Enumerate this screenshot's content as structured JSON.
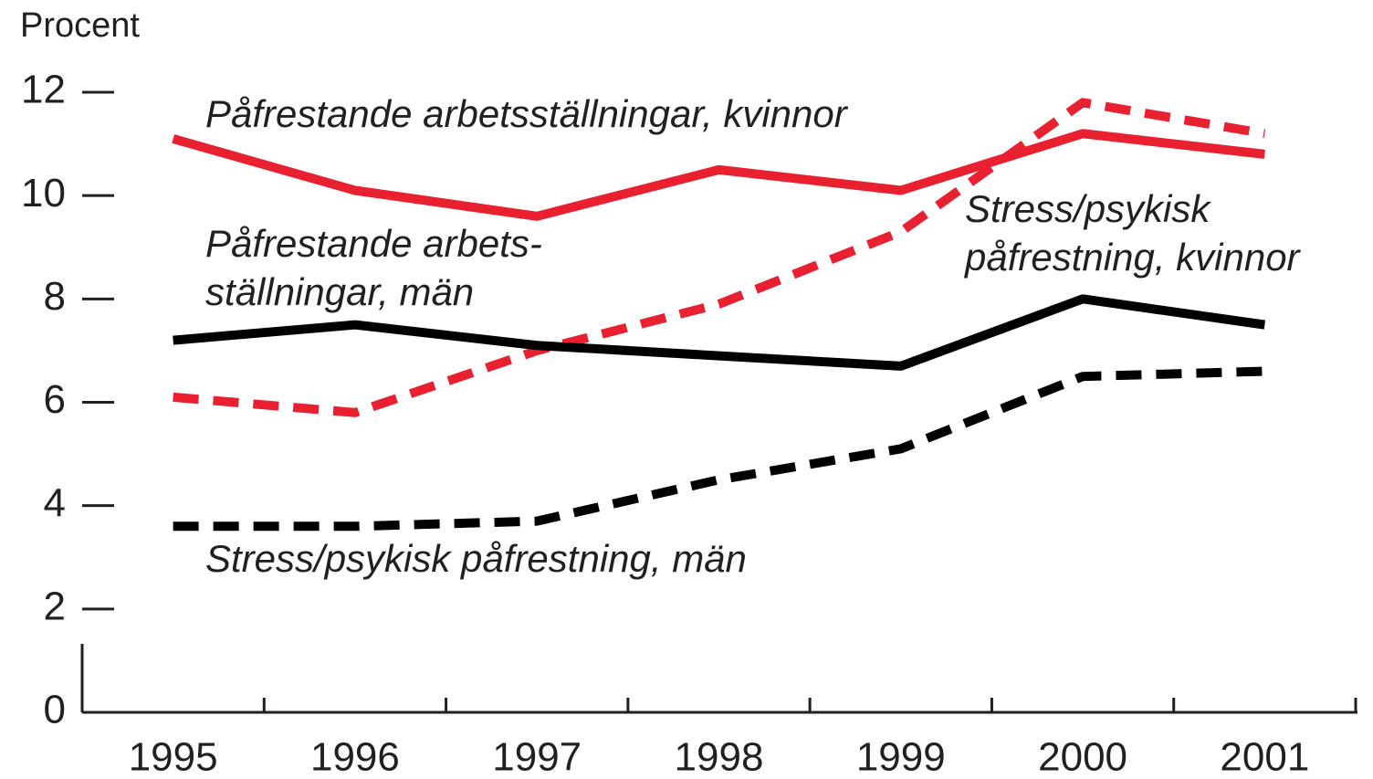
{
  "chart_data": {
    "type": "line",
    "y_label": "Procent",
    "categories": [
      "1995",
      "1996",
      "1997",
      "1998",
      "1999",
      "2000",
      "2001"
    ],
    "ylim": [
      0,
      12
    ],
    "yticks": [
      0,
      2,
      4,
      6,
      8,
      10,
      12
    ],
    "series": [
      {
        "label": [
          "Påfrestande arbetsställningar, kvinnor"
        ],
        "color": "#e8202f",
        "dash": false,
        "values": [
          11.1,
          10.1,
          9.6,
          10.5,
          10.1,
          11.2,
          10.8
        ]
      },
      {
        "label": [
          "Stress/psykisk",
          "påfrestning, kvinnor"
        ],
        "color": "#e8202f",
        "dash": true,
        "values": [
          6.1,
          5.8,
          7.0,
          7.9,
          9.3,
          11.8,
          11.2
        ]
      },
      {
        "label": [
          "Påfrestande arbets-",
          "ställningar, män"
        ],
        "color": "#000000",
        "dash": false,
        "values": [
          7.2,
          7.5,
          7.1,
          6.9,
          6.7,
          8.0,
          7.5
        ]
      },
      {
        "label": [
          "Stress/psykisk påfrestning, män"
        ],
        "color": "#000000",
        "dash": true,
        "values": [
          3.6,
          3.6,
          3.7,
          4.5,
          5.1,
          6.5,
          6.6
        ]
      }
    ]
  }
}
